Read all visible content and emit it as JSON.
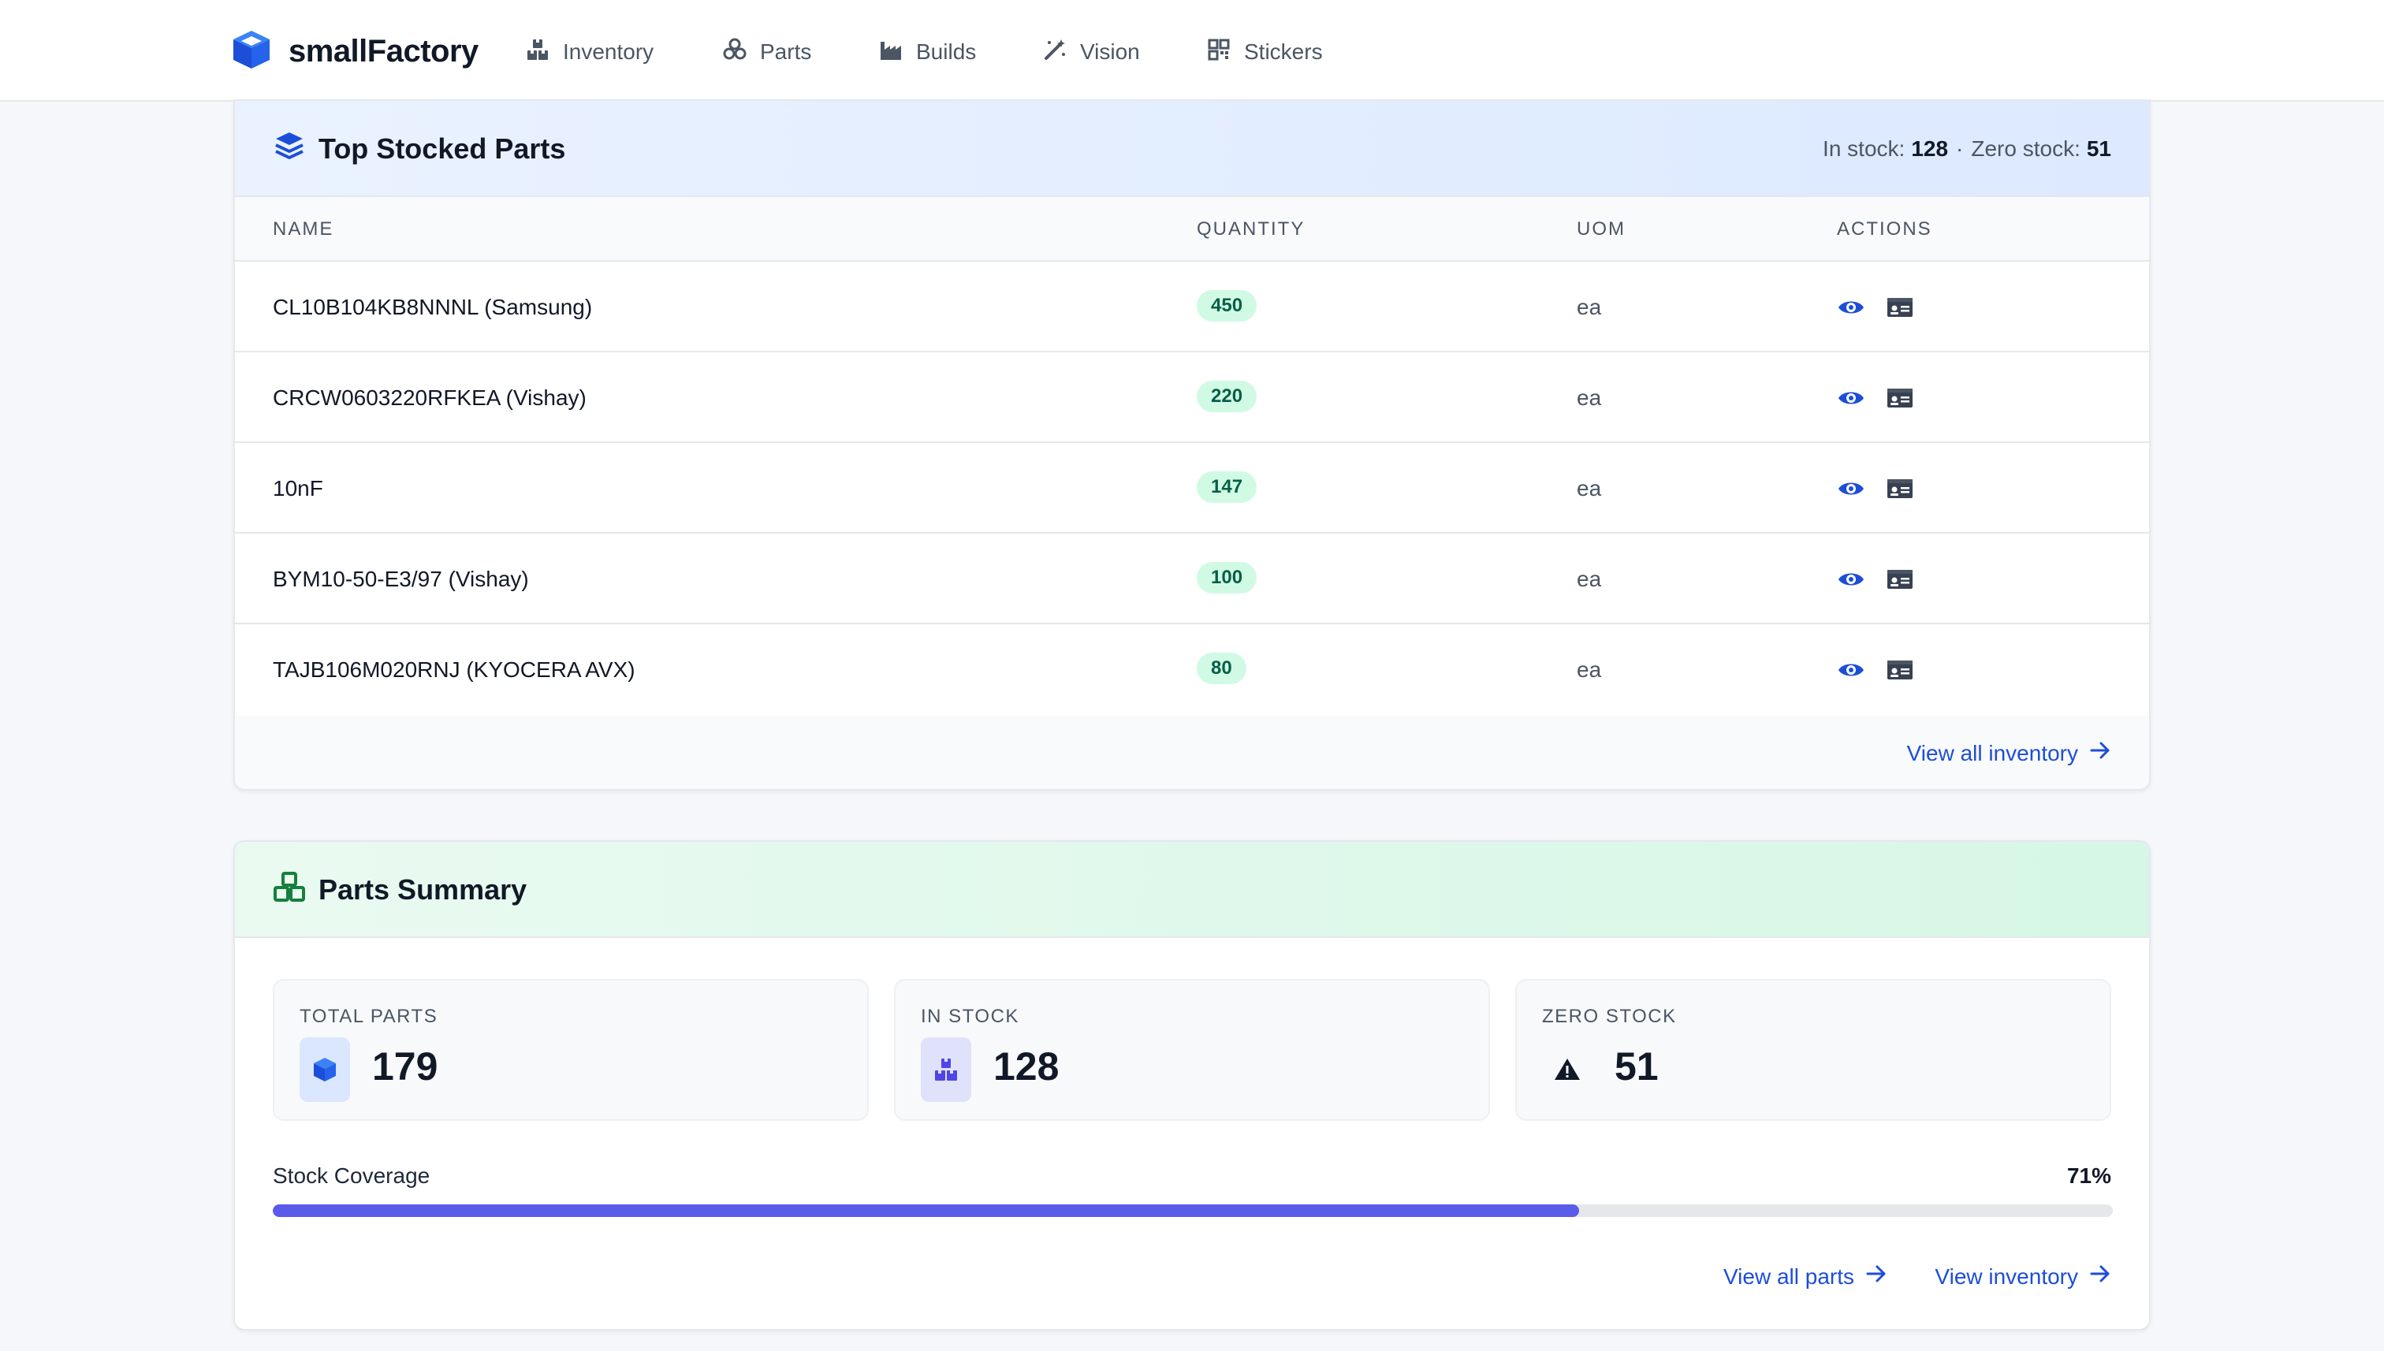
{
  "nav": {
    "brand": "smallFactory",
    "items": [
      {
        "label": "Inventory",
        "icon": "boxes-icon"
      },
      {
        "label": "Parts",
        "icon": "cubes-icon"
      },
      {
        "label": "Builds",
        "icon": "industry-icon"
      },
      {
        "label": "Vision",
        "icon": "magic-wand-icon"
      },
      {
        "label": "Stickers",
        "icon": "qrcode-icon"
      }
    ]
  },
  "top_stocked": {
    "title": "Top Stocked Parts",
    "in_stock_label": "In stock:",
    "in_stock_value": "128",
    "separator": "·",
    "zero_stock_label": "Zero stock:",
    "zero_stock_value": "51",
    "columns": [
      "NAME",
      "QUANTITY",
      "UOM",
      "ACTIONS"
    ],
    "rows": [
      {
        "name": "CL10B104KB8NNNL (Samsung)",
        "quantity": "450",
        "uom": "ea"
      },
      {
        "name": "CRCW0603220RFKEA (Vishay)",
        "quantity": "220",
        "uom": "ea"
      },
      {
        "name": "10nF",
        "quantity": "147",
        "uom": "ea"
      },
      {
        "name": "BYM10-50-E3/97 (Vishay)",
        "quantity": "100",
        "uom": "ea"
      },
      {
        "name": "TAJB106M020RNJ (KYOCERA AVX)",
        "quantity": "80",
        "uom": "ea"
      }
    ],
    "view_all_label": "View all inventory"
  },
  "parts_summary": {
    "title": "Parts Summary",
    "stats": [
      {
        "label": "TOTAL PARTS",
        "value": "179",
        "icon": "cube-icon"
      },
      {
        "label": "IN STOCK",
        "value": "128",
        "icon": "boxes-icon"
      },
      {
        "label": "ZERO STOCK",
        "value": "51",
        "icon": "warning-icon"
      }
    ],
    "coverage_label": "Stock Coverage",
    "coverage_pct_text": "71%",
    "coverage_fraction": 0.71,
    "view_parts_label": "View all parts",
    "view_inventory_label": "View inventory"
  },
  "colors": {
    "accent": "#1d4ed8",
    "progress": "#5b5bea",
    "badge_bg": "#d1fae5",
    "badge_text": "#065f46"
  }
}
